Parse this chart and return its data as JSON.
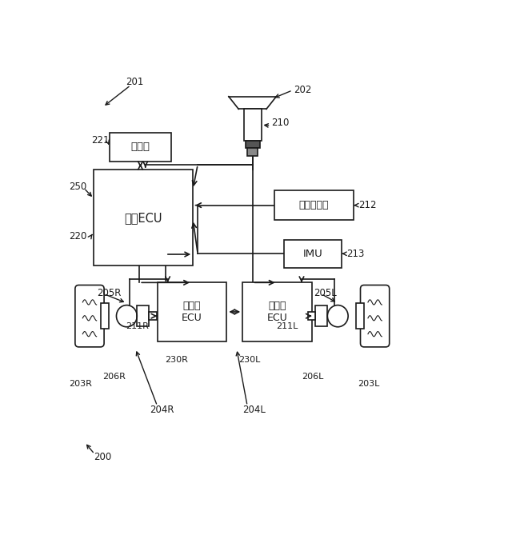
{
  "bg": "#ffffff",
  "lc": "#1a1a1a",
  "lw": 1.2,
  "figw": 6.4,
  "figh": 6.79,
  "dpi": 100,
  "boxes": {
    "memory": [
      0.115,
      0.77,
      0.155,
      0.068,
      "記憶部",
      9.5
    ],
    "upper_ecu": [
      0.075,
      0.52,
      0.25,
      0.23,
      "上位ECU",
      10.5
    ],
    "spd_sensor": [
      0.53,
      0.63,
      0.2,
      0.07,
      "車速センサ",
      9.0
    ],
    "imu": [
      0.555,
      0.515,
      0.145,
      0.068,
      "IMU",
      9.5
    ],
    "right_ecu": [
      0.235,
      0.34,
      0.175,
      0.14,
      "右転舶\nECU",
      9.0
    ],
    "left_ecu": [
      0.45,
      0.34,
      0.175,
      0.14,
      "左転舶\nECU",
      9.0
    ]
  }
}
